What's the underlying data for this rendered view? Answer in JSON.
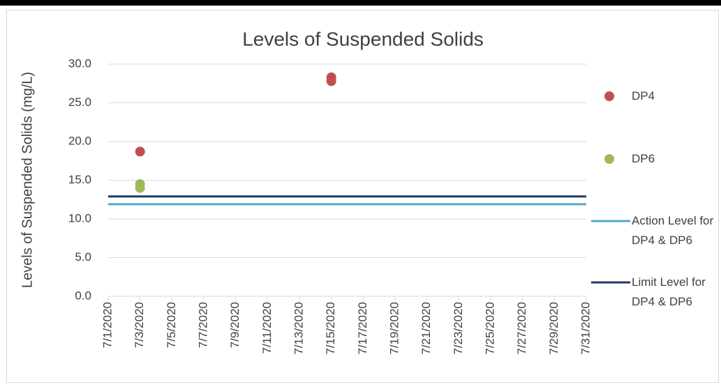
{
  "chart_data": {
    "type": "scatter",
    "title": "Levels of Suspended Solids",
    "y_label": "Levels of Suspended Solids (mg/L)",
    "xlim": [
      "7/1/2020",
      "7/31/2020"
    ],
    "xticks": [
      "7/1/2020",
      "7/3/2020",
      "7/5/2020",
      "7/7/2020",
      "7/9/2020",
      "7/11/2020",
      "7/13/2020",
      "7/15/2020",
      "7/17/2020",
      "7/19/2020",
      "7/21/2020",
      "7/23/2020",
      "7/25/2020",
      "7/27/2020",
      "7/29/2020",
      "7/31/2020"
    ],
    "ylim": [
      0,
      30
    ],
    "yticks": [
      {
        "value": 0,
        "label": "0.0"
      },
      {
        "value": 5,
        "label": "5.0"
      },
      {
        "value": 10,
        "label": "10.0"
      },
      {
        "value": 15,
        "label": "15.0"
      },
      {
        "value": 20,
        "label": "20.0"
      },
      {
        "value": 25,
        "label": "25.0"
      },
      {
        "value": 30,
        "label": "30.0"
      }
    ],
    "grid": true,
    "legend": "right",
    "series": [
      {
        "name": "DP4",
        "kind": "marker",
        "color": "#c0504d",
        "x": [
          "7/3/2020",
          "7/15/2020",
          "7/15/2020"
        ],
        "values": [
          18.7,
          28.3,
          27.8
        ]
      },
      {
        "name": "DP6",
        "kind": "marker",
        "color": "#9bbb59",
        "x": [
          "7/3/2020",
          "7/3/2020"
        ],
        "values": [
          14.5,
          14.0
        ]
      },
      {
        "name": "Action Level for DP4 & DP6",
        "kind": "line",
        "color": "#4bacc6",
        "x": [
          "7/1/2020",
          "7/31/2020"
        ],
        "values": [
          11.9,
          11.9
        ]
      },
      {
        "name": "Limit Level for DP4 & DP6",
        "kind": "line",
        "color": "#1f3864",
        "x": [
          "7/1/2020",
          "7/31/2020"
        ],
        "values": [
          12.9,
          12.9
        ]
      }
    ]
  }
}
